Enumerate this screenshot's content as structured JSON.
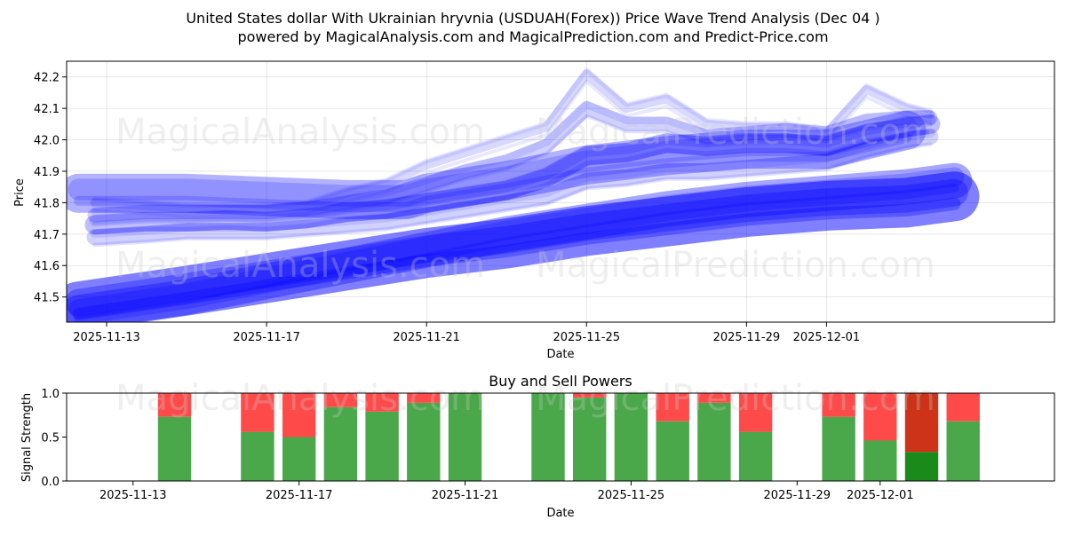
{
  "title_line1": "United States dollar With Ukrainian hryvnia (USDUAH(Forex)) Price Wave Trend Analysis (Dec 04 )",
  "title_line2": "powered by MagicalAnalysis.com and MagicalPrediction.com and Predict-Price.com",
  "watermarks": [
    "MagicalAnalysis.com",
    "MagicalPrediction.com"
  ],
  "chart_data": [
    {
      "type": "line",
      "name": "price-wave-trend",
      "xlabel": "Date",
      "ylabel": "Price",
      "ylim": [
        41.42,
        42.25
      ],
      "xlim_days": [
        -1.0,
        23.7
      ],
      "x_origin": "2025-11-13",
      "x_ticks": [
        {
          "day": 0,
          "label": "2025-11-13"
        },
        {
          "day": 4,
          "label": "2025-11-17"
        },
        {
          "day": 8,
          "label": "2025-11-21"
        },
        {
          "day": 12,
          "label": "2025-11-25"
        },
        {
          "day": 16,
          "label": "2025-11-29"
        },
        {
          "day": 18,
          "label": "2025-12-01"
        }
      ],
      "y_ticks": [
        41.5,
        41.6,
        41.7,
        41.8,
        41.9,
        42.0,
        42.1,
        42.2
      ],
      "grid": true,
      "band_color": "#0000ff",
      "series": [
        {
          "name": "central-wave",
          "width": 22,
          "opacity": 0.25,
          "x": [
            -0.3,
            1,
            2,
            3,
            4,
            5,
            6,
            7,
            8,
            9,
            10,
            11,
            12,
            13,
            14,
            15,
            16,
            17,
            18,
            19,
            20,
            20.6
          ],
          "y": [
            41.73,
            41.74,
            41.74,
            41.745,
            41.74,
            41.75,
            41.77,
            41.78,
            41.8,
            41.82,
            41.84,
            41.88,
            41.95,
            41.96,
            41.99,
            41.98,
            41.99,
            41.99,
            41.98,
            42.02,
            42.04,
            42.05
          ]
        },
        {
          "name": "upper-wave",
          "width": 16,
          "opacity": 0.18,
          "x": [
            -0.3,
            1,
            2,
            3,
            4,
            5,
            6,
            7,
            8,
            9,
            10,
            11,
            12,
            13,
            14,
            15,
            16,
            17,
            18,
            19,
            20,
            20.6
          ],
          "y": [
            41.76,
            41.77,
            41.77,
            41.77,
            41.77,
            41.78,
            41.8,
            41.82,
            41.86,
            41.9,
            41.93,
            41.98,
            42.1,
            42.05,
            42.05,
            42.01,
            42.02,
            42.03,
            42.02,
            42.06,
            42.07,
            42.07
          ]
        },
        {
          "name": "peak-wave",
          "width": 10,
          "opacity": 0.15,
          "x": [
            -0.3,
            1,
            2,
            3,
            4,
            5,
            6,
            7,
            8,
            9,
            10,
            11,
            12,
            13,
            14,
            15,
            16,
            17,
            18,
            19,
            20,
            20.6
          ],
          "y": [
            41.8,
            41.79,
            41.78,
            41.78,
            41.78,
            41.79,
            41.83,
            41.86,
            41.92,
            41.96,
            42.0,
            42.04,
            42.21,
            42.1,
            42.13,
            42.05,
            42.04,
            42.04,
            42.02,
            42.16,
            42.1,
            42.08
          ]
        },
        {
          "name": "lower-wave",
          "width": 18,
          "opacity": 0.18,
          "x": [
            -0.3,
            1,
            2,
            3,
            4,
            5,
            6,
            7,
            8,
            9,
            10,
            11,
            12,
            13,
            14,
            15,
            16,
            17,
            18,
            19,
            20,
            20.6
          ],
          "y": [
            41.69,
            41.7,
            41.71,
            41.71,
            41.71,
            41.72,
            41.73,
            41.74,
            41.76,
            41.78,
            41.8,
            41.82,
            41.87,
            41.88,
            41.9,
            41.9,
            41.91,
            41.92,
            41.93,
            41.97,
            42.0,
            42.01
          ]
        },
        {
          "name": "flat-band",
          "width": 44,
          "opacity": 0.3,
          "x": [
            -0.7,
            2,
            4,
            6,
            7.5,
            8,
            10,
            12,
            14,
            16,
            18,
            20
          ],
          "y": [
            41.83,
            41.83,
            41.82,
            41.81,
            41.81,
            41.83,
            41.87,
            41.92,
            41.95,
            41.97,
            41.97,
            42.03
          ]
        },
        {
          "name": "long-trend",
          "width": 56,
          "opacity": 0.5,
          "x": [
            -0.7,
            2,
            4,
            6,
            8,
            10,
            12,
            14,
            16,
            18,
            20,
            21.2
          ],
          "y": [
            41.47,
            41.52,
            41.56,
            41.6,
            41.64,
            41.67,
            41.71,
            41.74,
            41.77,
            41.79,
            41.8,
            41.82
          ]
        },
        {
          "name": "long-trend-upper",
          "width": 40,
          "opacity": 0.35,
          "x": [
            -0.7,
            2,
            4,
            6,
            8,
            10,
            12,
            14,
            16,
            18,
            20,
            21.2
          ],
          "y": [
            41.45,
            41.5,
            41.55,
            41.6,
            41.65,
            41.7,
            41.74,
            41.78,
            41.81,
            41.83,
            41.85,
            41.87
          ]
        }
      ]
    },
    {
      "type": "bar",
      "name": "buy-and-sell-powers",
      "title": "Buy and Sell Powers",
      "xlabel": "Date",
      "ylabel": "Signal Strength",
      "ylim": [
        0,
        1
      ],
      "xlim_days": [
        -1.6,
        22.2
      ],
      "x_origin": "2025-11-13",
      "x_ticks": [
        {
          "day": 0,
          "label": "2025-11-13"
        },
        {
          "day": 4,
          "label": "2025-11-17"
        },
        {
          "day": 8,
          "label": "2025-11-21"
        },
        {
          "day": 12,
          "label": "2025-11-25"
        },
        {
          "day": 16,
          "label": "2025-11-29"
        },
        {
          "day": 18,
          "label": "2025-12-01"
        }
      ],
      "y_ticks": [
        0.0,
        0.5,
        1.0
      ],
      "buy_color": "#4aa84a",
      "sell_color": "#ff4a4a",
      "highlight_buy_color": "#1a8a1a",
      "highlight_sell_color": "#cc3318",
      "bars": [
        {
          "day": 1,
          "buy": 0.73
        },
        {
          "day": 3,
          "buy": 0.56
        },
        {
          "day": 4,
          "buy": 0.5
        },
        {
          "day": 5,
          "buy": 0.84
        },
        {
          "day": 6,
          "buy": 0.79
        },
        {
          "day": 7,
          "buy": 0.89
        },
        {
          "day": 8,
          "buy": 1.0
        },
        {
          "day": 10,
          "buy": 1.0
        },
        {
          "day": 11,
          "buy": 0.95
        },
        {
          "day": 12,
          "buy": 1.0
        },
        {
          "day": 13,
          "buy": 0.68
        },
        {
          "day": 14,
          "buy": 0.89
        },
        {
          "day": 15,
          "buy": 0.56
        },
        {
          "day": 17,
          "buy": 0.73
        },
        {
          "day": 18,
          "buy": 0.46
        },
        {
          "day": 19,
          "buy": 0.33,
          "highlight": true
        },
        {
          "day": 20,
          "buy": 0.68
        }
      ]
    }
  ]
}
